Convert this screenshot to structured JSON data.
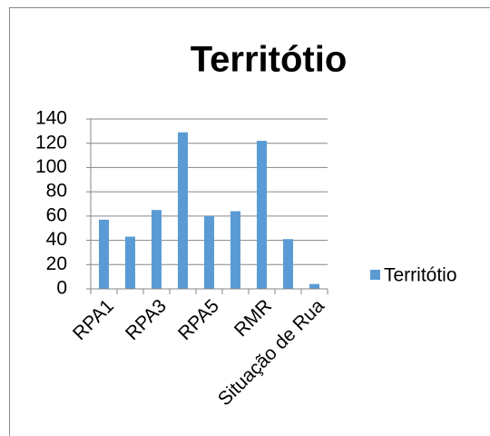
{
  "chart_data": {
    "type": "bar",
    "title": "Territótio",
    "categories": [
      "RPA1",
      null,
      "RPA3",
      null,
      "RPA5",
      null,
      "RMR",
      null,
      "Situação de Rua"
    ],
    "series": [
      {
        "name": "Territótio",
        "color": "#5b9bd5",
        "values": [
          57,
          43,
          65,
          129,
          60,
          64,
          122,
          41,
          4
        ]
      }
    ],
    "ylim": [
      0,
      140
    ],
    "yticks": [
      0,
      20,
      40,
      60,
      80,
      100,
      120,
      140
    ],
    "grid": true,
    "legend": "right"
  }
}
